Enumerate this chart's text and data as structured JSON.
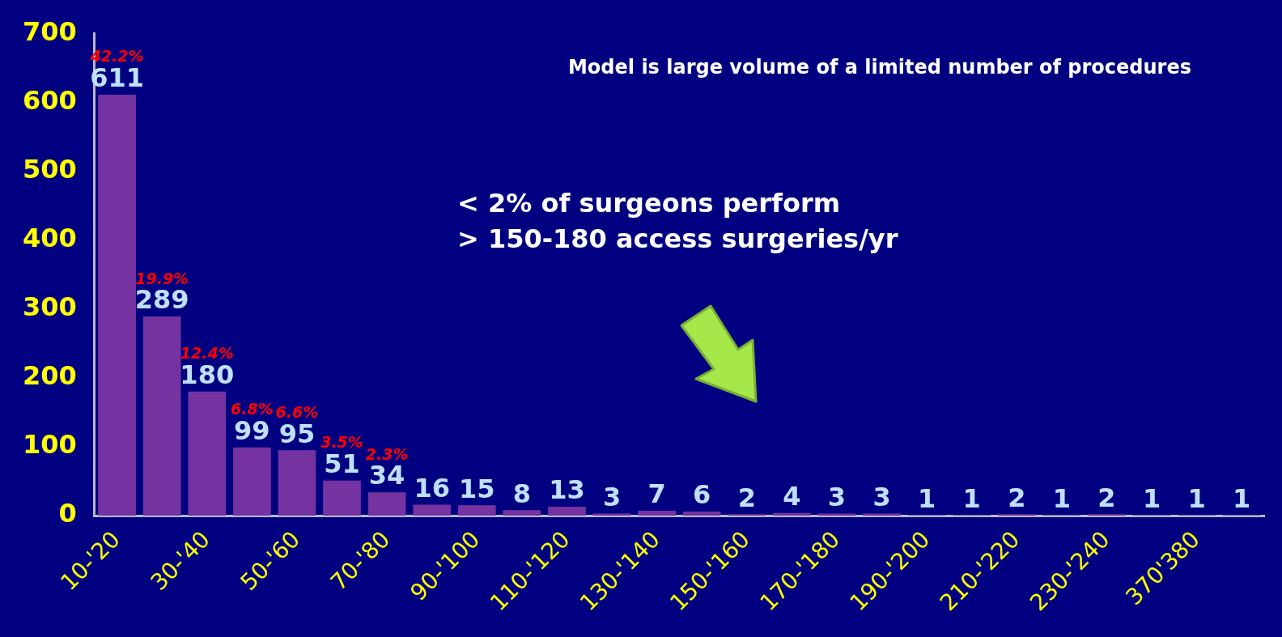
{
  "chart_data": {
    "type": "bar",
    "title": "Model is large volume of a limited number of procedures",
    "categories": [
      "10-'20",
      null,
      "30-'40",
      null,
      "50-'60",
      null,
      "70-'80",
      null,
      "90-'100",
      null,
      "110-'120",
      null,
      "130-'140",
      null,
      "150-'160",
      null,
      "170-'180",
      null,
      "190-'200",
      null,
      "210-'220",
      null,
      "230-'240",
      null,
      "370'380",
      null
    ],
    "values": [
      611,
      289,
      180,
      99,
      95,
      51,
      34,
      16,
      15,
      8,
      13,
      3,
      7,
      6,
      2,
      4,
      3,
      3,
      1,
      1,
      2,
      1,
      2,
      1,
      1,
      1
    ],
    "color": "#7433a0",
    "ylim": [
      0,
      700
    ],
    "yticks": [
      0,
      100,
      200,
      300,
      400,
      500,
      600,
      700
    ],
    "grid": false,
    "legend": false,
    "data_labels": true,
    "annotations": [
      "< 2% of surgeons perform\n> 150-180 access surgeries/yr",
      {
        "text": "42.2%",
        "x": "10-'20",
        "y": 611
      },
      {
        "text": "19.9%",
        "y": 289
      },
      {
        "text": "12.4%",
        "x": "30-'40",
        "y": 180
      },
      {
        "text": "6.8%",
        "y": 99
      },
      {
        "text": "6.6%",
        "x": "50-'60",
        "y": 95
      },
      {
        "text": "3.5%",
        "y": 51
      },
      {
        "text": "2.3%",
        "x": "70-'80",
        "y": 34
      }
    ]
  }
}
